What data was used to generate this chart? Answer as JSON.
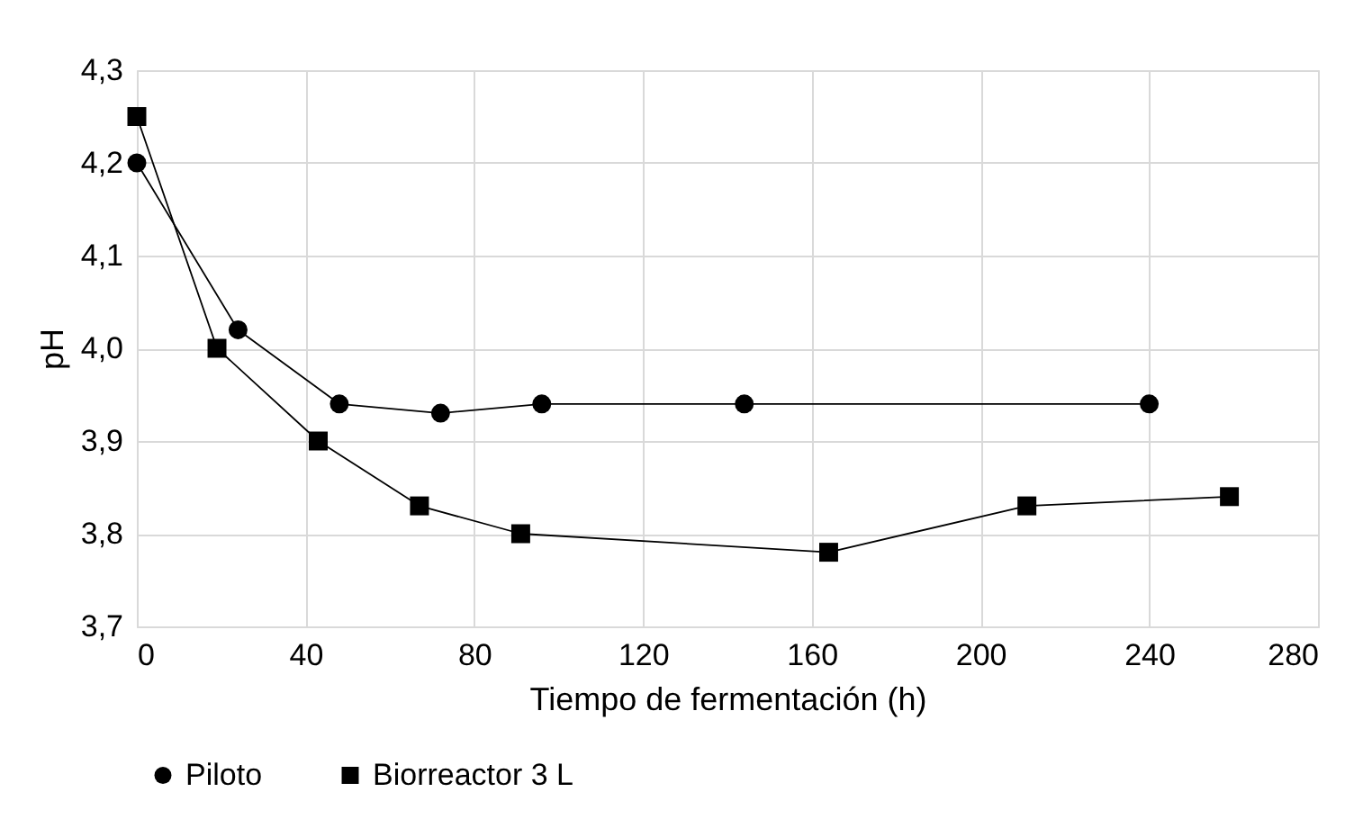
{
  "chart_data": {
    "type": "line",
    "xlabel": "Tiempo de fermentación (h)",
    "ylabel": "pH",
    "xlim": [
      0,
      280
    ],
    "xticks": [
      0,
      40,
      80,
      120,
      160,
      200,
      240,
      280
    ],
    "ylim": [
      3.7,
      4.3
    ],
    "yticks": [
      {
        "value": 3.7,
        "label": "3,7"
      },
      {
        "value": 3.8,
        "label": "3,8"
      },
      {
        "value": 3.9,
        "label": "3,9"
      },
      {
        "value": 4.0,
        "label": "4,0"
      },
      {
        "value": 4.1,
        "label": "4,1"
      },
      {
        "value": 4.2,
        "label": "4,2"
      },
      {
        "value": 4.3,
        "label": "4,3"
      }
    ],
    "grid": true,
    "legend": "bottom",
    "line_style": "solid",
    "series": [
      {
        "name": "Piloto",
        "color": "#000000",
        "marker": "circle",
        "x": [
          0,
          24,
          48,
          72,
          96,
          144,
          240
        ],
        "values": [
          4.2,
          4.02,
          3.94,
          3.93,
          3.94,
          3.94,
          3.94
        ]
      },
      {
        "name": "Biorreactor 3 L",
        "color": "#000000",
        "marker": "square",
        "x": [
          0,
          19,
          43,
          67,
          91,
          164,
          211,
          259
        ],
        "values": [
          4.25,
          4.0,
          3.9,
          3.83,
          3.8,
          3.78,
          3.83,
          3.84
        ]
      }
    ]
  }
}
